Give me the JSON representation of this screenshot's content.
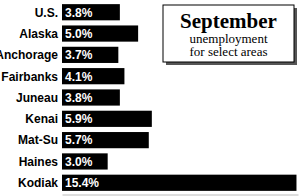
{
  "chart_data": {
    "type": "bar",
    "orientation": "horizontal",
    "title": "September",
    "subtitle": "unemployment for select areas",
    "categories": [
      "U.S.",
      "Alaska",
      "Anchorage",
      "Fairbanks",
      "Juneau",
      "Kenai",
      "Mat-Su",
      "Haines",
      "Kodiak"
    ],
    "values": [
      3.8,
      5.0,
      3.7,
      4.1,
      3.8,
      5.9,
      5.7,
      3.0,
      15.4
    ],
    "value_labels": [
      "3.8%",
      "5.0%",
      "3.7%",
      "4.1%",
      "3.8%",
      "5.9%",
      "5.7%",
      "3.0%",
      "15.4%"
    ],
    "data_labels": true,
    "color": "#000000",
    "xlim": [
      0,
      15.5
    ],
    "tick_labels": false,
    "grid": false
  }
}
